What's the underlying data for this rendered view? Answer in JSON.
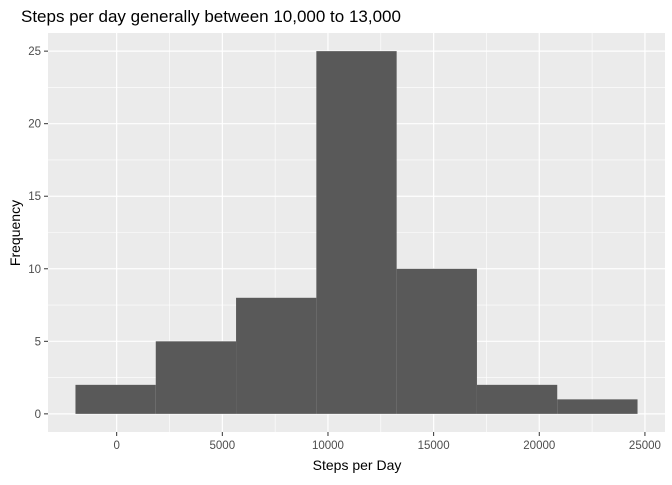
{
  "chart_data": {
    "type": "bar",
    "title": "Steps per day generally between 10,000 to 13,000",
    "xlabel": "Steps per Day",
    "ylabel": "Frequency",
    "bins": [
      {
        "x_start": -1950,
        "x_end": 1850,
        "count": 2
      },
      {
        "x_start": 1850,
        "x_end": 5650,
        "count": 5
      },
      {
        "x_start": 5650,
        "x_end": 9450,
        "count": 8
      },
      {
        "x_start": 9450,
        "x_end": 13250,
        "count": 25
      },
      {
        "x_start": 13250,
        "x_end": 17050,
        "count": 10
      },
      {
        "x_start": 17050,
        "x_end": 20850,
        "count": 2
      },
      {
        "x_start": 20850,
        "x_end": 24650,
        "count": 1
      }
    ],
    "xlim": [
      -3250,
      25950
    ],
    "ylim": [
      -1.25,
      26.25
    ],
    "x_ticks": [
      0,
      5000,
      10000,
      15000,
      20000,
      25000
    ],
    "y_ticks": [
      0,
      5,
      10,
      15,
      20,
      25
    ],
    "x_tick_labels": [
      "0",
      "5000",
      "10000",
      "15000",
      "20000",
      "25000"
    ],
    "y_tick_labels": [
      "0",
      "5",
      "10",
      "15",
      "20",
      "25"
    ],
    "grid": true,
    "colors": {
      "panel_background": "#ebebeb",
      "grid_major": "#ffffff",
      "bar_fill": "#595959",
      "tick_mark": "#333333"
    }
  }
}
